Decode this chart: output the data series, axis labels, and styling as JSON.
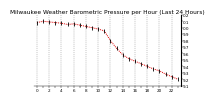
{
  "title": "Milwaukee Weather Barometric Pressure per Hour (Last 24 Hours)",
  "background_color": "#ffffff",
  "plot_bg_color": "#ffffff",
  "line_color": "#dd0000",
  "marker_color": "#000000",
  "grid_color": "#888888",
  "hours": [
    0,
    1,
    2,
    3,
    4,
    5,
    6,
    7,
    8,
    9,
    10,
    11,
    12,
    13,
    14,
    15,
    16,
    17,
    18,
    19,
    20,
    21,
    22,
    23
  ],
  "pressure": [
    30.08,
    30.1,
    30.09,
    30.08,
    30.07,
    30.05,
    30.06,
    30.04,
    30.02,
    30.0,
    29.98,
    29.95,
    29.8,
    29.68,
    29.58,
    29.52,
    29.48,
    29.44,
    29.4,
    29.36,
    29.33,
    29.28,
    29.24,
    29.2
  ],
  "ylim": [
    29.1,
    30.2
  ],
  "ytick_vals": [
    29.1,
    29.2,
    29.3,
    29.4,
    29.5,
    29.6,
    29.7,
    29.8,
    29.9,
    30.0,
    30.1,
    30.2
  ],
  "ytick_labels": [
    "9.1",
    "9.2",
    "9.3",
    "9.4",
    "9.5",
    "9.6",
    "9.7",
    "9.8",
    "9.9",
    "0.0",
    "0.1",
    "0.2"
  ],
  "xlim": [
    -0.5,
    23.5
  ],
  "title_fontsize": 4.2,
  "tick_fontsize": 3.0,
  "line_width": 0.7,
  "marker_size": 1.5,
  "grid_lw": 0.35
}
